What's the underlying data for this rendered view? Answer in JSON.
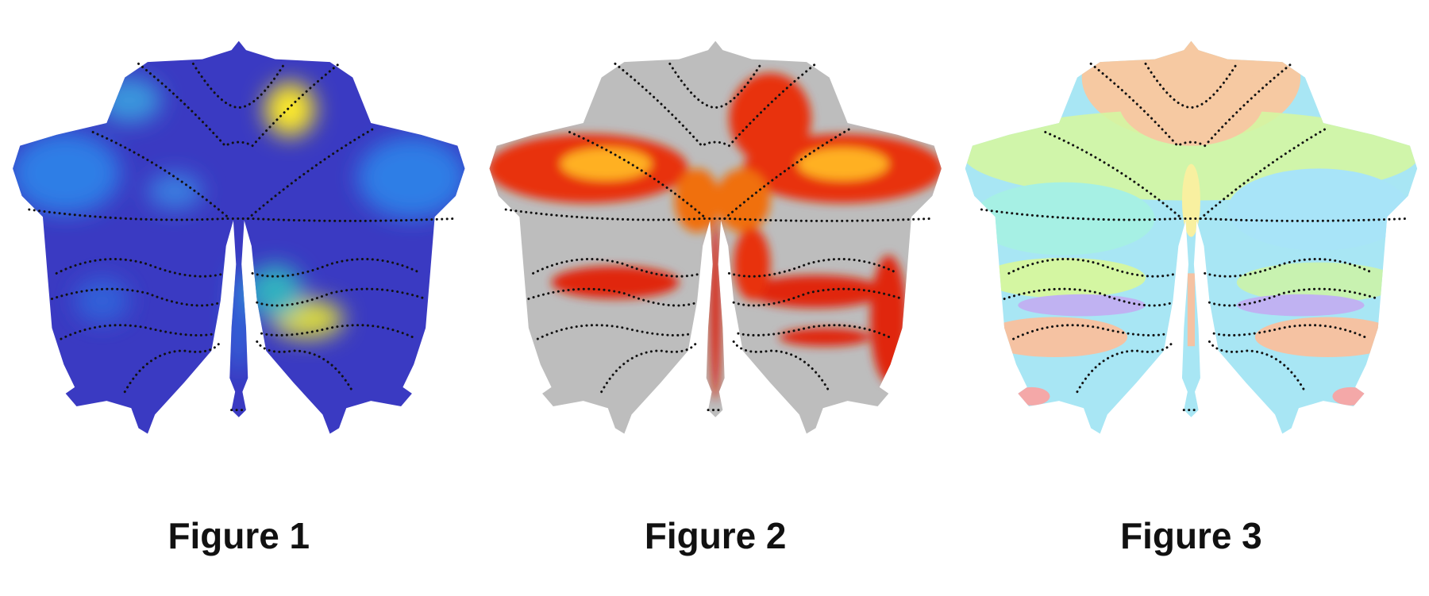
{
  "figures": [
    {
      "caption": "Figure 1"
    },
    {
      "caption": "Figure 2"
    },
    {
      "caption": "Figure 3"
    }
  ]
}
